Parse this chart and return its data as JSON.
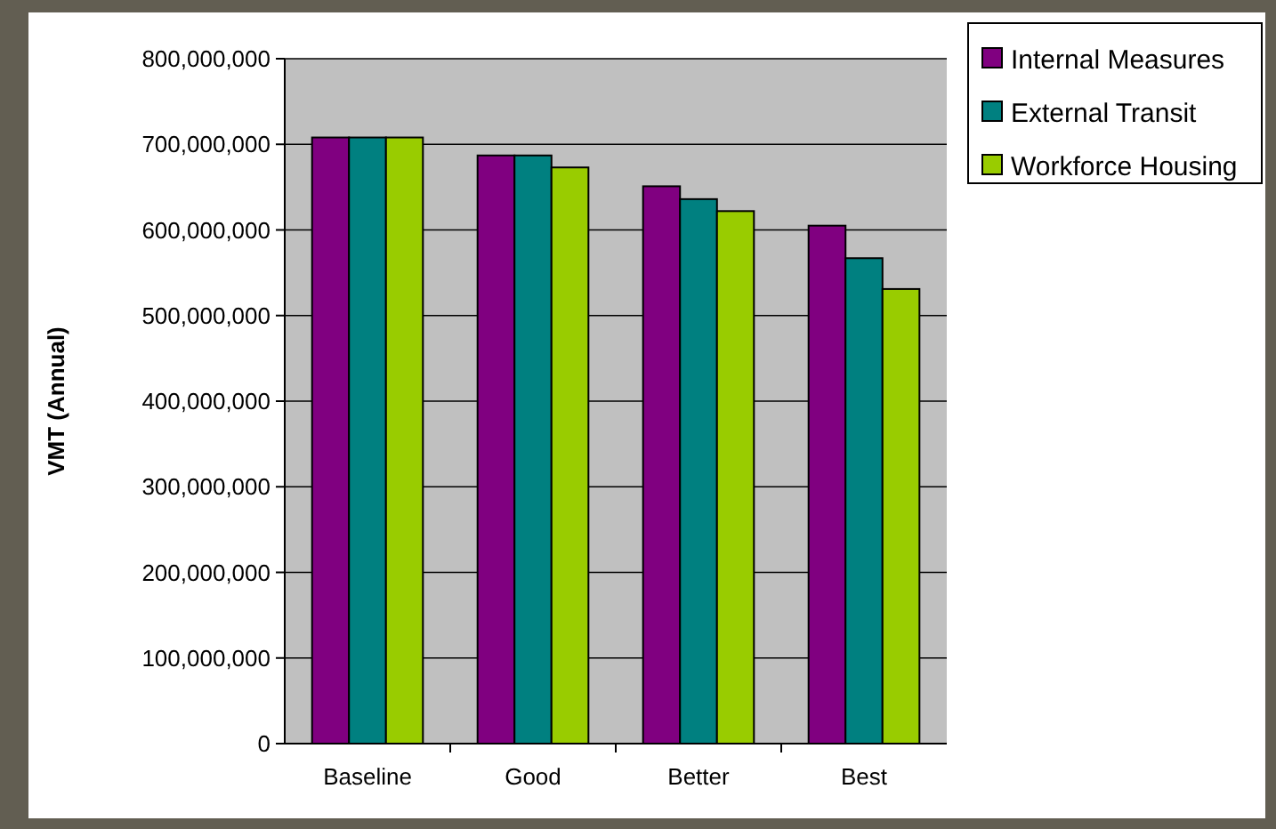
{
  "chart_data": {
    "type": "bar",
    "ylabel": "VMT (Annual)",
    "categories": [
      "Baseline",
      "Good",
      "Better",
      "Best"
    ],
    "series": [
      {
        "name": "Internal Measures",
        "color": "#800080",
        "values": [
          708000000,
          687000000,
          651000000,
          605000000
        ]
      },
      {
        "name": "External Transit",
        "color": "#008080",
        "values": [
          708000000,
          687000000,
          636000000,
          567000000
        ]
      },
      {
        "name": "Workforce Housing",
        "color": "#99cc00",
        "values": [
          708000000,
          673000000,
          622000000,
          531000000
        ]
      }
    ],
    "ylim": [
      0,
      800000000
    ],
    "yticks": [
      0,
      {
        "value": 100000000,
        "label": "100,000,000"
      },
      {
        "value": 200000000,
        "label": "200,000,000"
      },
      {
        "value": 300000000,
        "label": "300,000,000"
      },
      {
        "value": 400000000,
        "label": "400,000,000"
      },
      {
        "value": 500000000,
        "label": "500,000,000"
      },
      {
        "value": 600000000,
        "label": "600,000,000"
      },
      {
        "value": 700000000,
        "label": "700,000,000"
      },
      {
        "value": 800000000,
        "label": "800,000,000"
      }
    ],
    "grid": "y",
    "legend": "right"
  }
}
